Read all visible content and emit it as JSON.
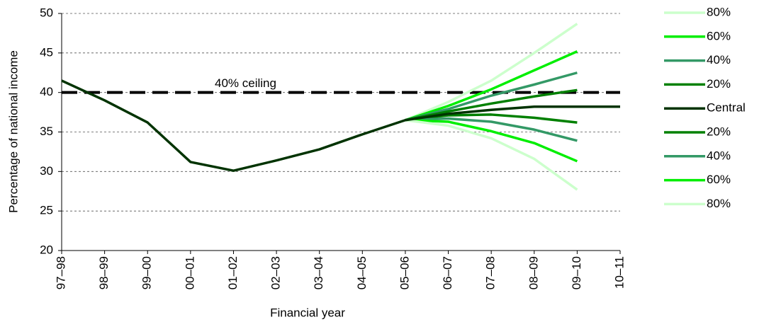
{
  "chart_data": {
    "type": "line",
    "x_label": "Financial year",
    "y_label": "Percentage of national income",
    "categories": [
      "97–98",
      "98–99",
      "99–00",
      "00–01",
      "01–02",
      "02–03",
      "03–04",
      "04–05",
      "05–06",
      "06–07",
      "07–08",
      "08–09",
      "09–10",
      "10–11"
    ],
    "ylim": [
      20,
      50
    ],
    "yticks": [
      20,
      25,
      30,
      35,
      40,
      45,
      50
    ],
    "grid": true,
    "legend": "right",
    "ceiling": {
      "value": 40,
      "label": "40% ceiling"
    },
    "series": [
      {
        "name": "80%",
        "color": "#ccffcc",
        "values": [
          null,
          null,
          null,
          null,
          null,
          null,
          null,
          null,
          36.5,
          38.8,
          41.5,
          45.0,
          48.7,
          null
        ]
      },
      {
        "name": "60%",
        "color": "#00ee00",
        "values": [
          null,
          null,
          null,
          null,
          null,
          null,
          null,
          null,
          36.5,
          38.3,
          40.4,
          42.8,
          45.2,
          null
        ]
      },
      {
        "name": "40%",
        "color": "#339966",
        "values": [
          null,
          null,
          null,
          null,
          null,
          null,
          null,
          null,
          36.5,
          37.9,
          39.6,
          41.0,
          42.5,
          null
        ]
      },
      {
        "name": "20%",
        "color": "#008000",
        "values": [
          null,
          null,
          null,
          null,
          null,
          null,
          null,
          null,
          36.5,
          37.6,
          38.6,
          39.5,
          40.3,
          null
        ]
      },
      {
        "name": "Central",
        "color": "#003300",
        "values": [
          41.5,
          39.0,
          36.2,
          31.2,
          30.1,
          31.4,
          32.8,
          34.7,
          36.5,
          37.3,
          37.8,
          38.2,
          38.2,
          38.2
        ]
      },
      {
        "name": "20%",
        "color": "#008000",
        "values": [
          null,
          null,
          null,
          null,
          null,
          null,
          null,
          null,
          36.5,
          37.1,
          37.2,
          36.8,
          36.2,
          null
        ]
      },
      {
        "name": "40%",
        "color": "#339966",
        "values": [
          null,
          null,
          null,
          null,
          null,
          null,
          null,
          null,
          36.5,
          36.7,
          36.3,
          35.3,
          33.9,
          null
        ]
      },
      {
        "name": "60%",
        "color": "#00ee00",
        "values": [
          null,
          null,
          null,
          null,
          null,
          null,
          null,
          null,
          36.5,
          36.3,
          35.1,
          33.6,
          31.3,
          null
        ]
      },
      {
        "name": "80%",
        "color": "#ccffcc",
        "values": [
          null,
          null,
          null,
          null,
          null,
          null,
          null,
          null,
          36.5,
          35.8,
          34.2,
          31.6,
          27.7,
          null
        ]
      }
    ]
  }
}
